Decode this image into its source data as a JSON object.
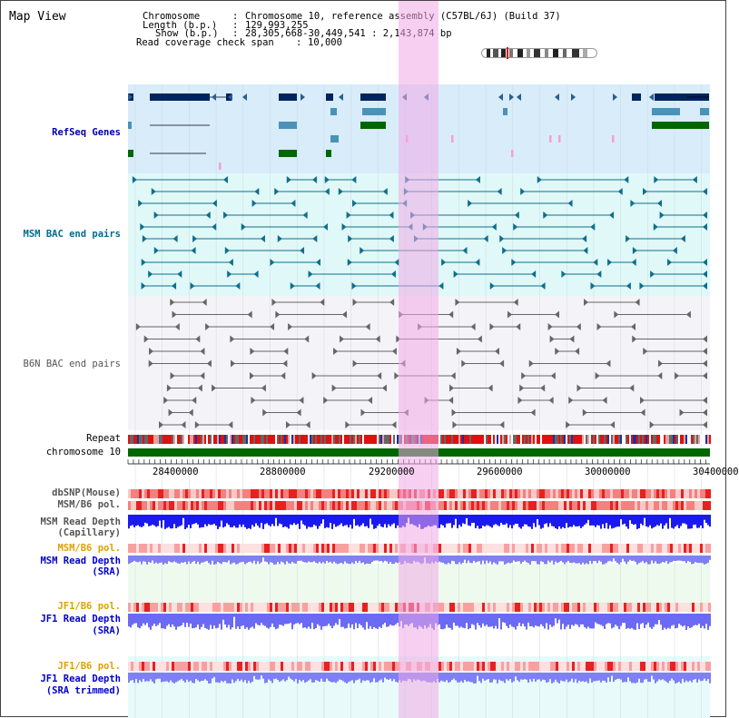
{
  "title": "Map View",
  "header": {
    "chromosome_label": "Chromosome",
    "chromosome_value": "Chromosome 10, reference assembly (C57BL/6J) (Build 37)",
    "length_label": "Length (b.p.)",
    "length_value": "129,993,255",
    "show_label": "Show (b.p.)",
    "show_value": "28,305,668-30,449,541 : 2,143,874 bp",
    "coverage_label": "Read coverage check span",
    "coverage_value": "10,000",
    "separator": ":"
  },
  "tracks": {
    "refseq": "RefSeq Genes",
    "msm_bac": "MSM BAC end pairs",
    "b6n_bac": "B6N BAC end pairs",
    "repeat": "Repeat",
    "chromosome": "chromosome 10",
    "dbsnp": "dbSNP(Mouse)",
    "msm_b6_pol": "MSM/B6 pol.",
    "msm_depth_cap_1": "MSM Read Depth",
    "msm_depth_cap_2": "(Capillary)",
    "msm_b6_pol_2": "MSM/B6 pol.",
    "msm_depth_sra_1": "MSM Read Depth",
    "msm_depth_sra_2": "(SRA)",
    "jf1_b6_pol": "JF1/B6 pol.",
    "jf1_depth_sra_1": "JF1 Read Depth",
    "jf1_depth_sra_2": "(SRA)",
    "jf1_b6_pol_2": "JF1/B6 pol.",
    "jf1_depth_trim_1": "JF1 Read Depth",
    "jf1_depth_trim_2": "(SRA trimmed)"
  },
  "axis": {
    "ticks": [
      "28400000",
      "28800000",
      "29200000",
      "29600000",
      "30000000",
      "30400000"
    ]
  },
  "colors": {
    "refseq_label": "#0000aa",
    "msm_label": "#006c8c",
    "b6n_label": "#555555",
    "orange_label": "#e0a000",
    "blue_label": "#0000cc",
    "refseq_bg": "#d8ecfa",
    "msm_bg": "#e0f8f8",
    "b6n_bg": "#f4f4f8",
    "highlight": "#f3c8ee"
  }
}
